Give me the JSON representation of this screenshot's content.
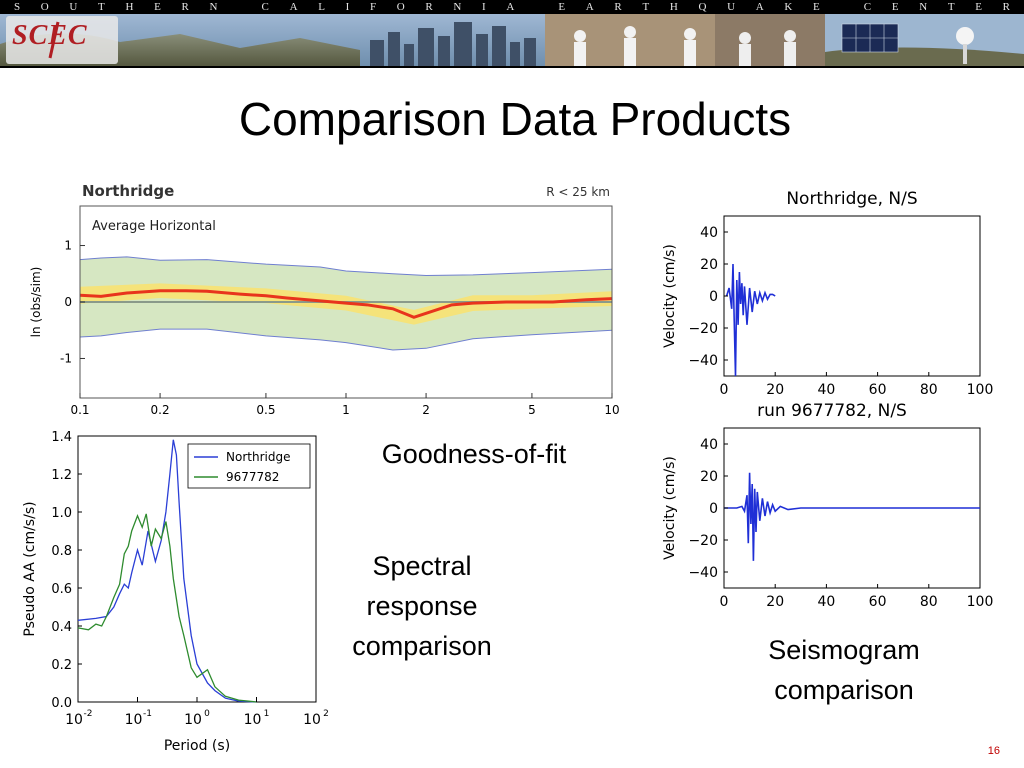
{
  "header": {
    "organization": "SOUTHERN CALIFORNIA EARTHQUAKE CENTER",
    "logo": "SCEC"
  },
  "slide": {
    "title": "Comparison Data Products",
    "captions": {
      "goodness": "Goodness-of-fit",
      "spectral": [
        "Spectral",
        "response",
        "comparison"
      ],
      "seismogram": [
        "Seismogram",
        "comparison"
      ]
    },
    "page_number": "16"
  },
  "chart_data": [
    {
      "id": "gof",
      "type": "area",
      "title": "Northridge",
      "subtitle": "R < 25 km",
      "annotation": "Average Horizontal",
      "ylabel": "ln (obs/sim)",
      "xlabel": "",
      "xscale": "log",
      "xlim": [
        0.1,
        10
      ],
      "ylim": [
        -1.7,
        1.7
      ],
      "xticks": [
        0.1,
        0.2,
        0.5,
        1,
        2,
        5,
        10
      ],
      "xtick_labels": [
        "0.1",
        "0.2",
        "0.5",
        "1",
        "2",
        "5",
        "10"
      ],
      "yticks": [
        -1,
        0,
        1
      ],
      "ytick_labels": [
        "-1",
        "0",
        "1"
      ],
      "series": [
        {
          "role": "mean bias",
          "color": "#e8341c",
          "x": [
            0.1,
            0.12,
            0.15,
            0.2,
            0.25,
            0.3,
            0.4,
            0.5,
            0.6,
            0.8,
            1.0,
            1.2,
            1.5,
            1.8,
            2.0,
            2.5,
            3.0,
            4.0,
            5.0,
            6.0,
            8.0,
            10.0
          ],
          "y": [
            0.12,
            0.1,
            0.16,
            0.2,
            0.2,
            0.19,
            0.14,
            0.11,
            0.07,
            0.02,
            -0.02,
            -0.05,
            -0.12,
            -0.27,
            -0.2,
            -0.05,
            -0.02,
            0.0,
            0.0,
            0.0,
            0.04,
            0.06
          ]
        },
        {
          "role": "90% confidence band",
          "color": "#f5e37a",
          "x": [
            0.1,
            0.2,
            0.5,
            1.0,
            1.8,
            3.0,
            5.0,
            10.0
          ],
          "lower": [
            -0.03,
            0.07,
            -0.02,
            -0.15,
            -0.4,
            -0.16,
            -0.12,
            -0.07
          ],
          "upper": [
            0.27,
            0.33,
            0.24,
            0.11,
            -0.14,
            0.12,
            0.12,
            0.19
          ]
        },
        {
          "role": "standard deviation band",
          "color": "#d6e7c2",
          "x": [
            0.1,
            0.12,
            0.15,
            0.2,
            0.3,
            0.5,
            0.8,
            1.0,
            1.5,
            2.0,
            3.0,
            5.0,
            10.0
          ],
          "lower": [
            -0.62,
            -0.6,
            -0.54,
            -0.48,
            -0.48,
            -0.6,
            -0.67,
            -0.72,
            -0.85,
            -0.82,
            -0.65,
            -0.58,
            -0.5
          ],
          "upper": [
            0.75,
            0.78,
            0.8,
            0.74,
            0.75,
            0.67,
            0.62,
            0.55,
            0.5,
            0.47,
            0.48,
            0.52,
            0.58
          ]
        }
      ]
    },
    {
      "id": "spectral",
      "type": "line",
      "title": "",
      "xlabel": "Period (s)",
      "ylabel": "Pseudo AA (cm/s/s)",
      "xscale": "log",
      "xlim": [
        0.01,
        100
      ],
      "ylim": [
        0.0,
        1.4
      ],
      "xtick_labels": [
        "10",
        "10",
        "10",
        "10",
        "10"
      ],
      "xtick_exponents": [
        "-2",
        "-1",
        "0",
        "1",
        "2"
      ],
      "ytick_labels": [
        "0.0",
        "0.2",
        "0.4",
        "0.6",
        "0.8",
        "1.0",
        "1.2",
        "1.4"
      ],
      "legend_position": "top-right",
      "series": [
        {
          "name": "Northridge",
          "color": "#2b3fd6",
          "x": [
            0.01,
            0.02,
            0.03,
            0.04,
            0.05,
            0.06,
            0.07,
            0.08,
            0.1,
            0.12,
            0.15,
            0.2,
            0.25,
            0.3,
            0.35,
            0.4,
            0.45,
            0.5,
            0.6,
            0.8,
            1.0,
            1.5,
            2,
            3,
            5,
            10
          ],
          "y": [
            0.43,
            0.44,
            0.45,
            0.5,
            0.57,
            0.62,
            0.6,
            0.68,
            0.8,
            0.72,
            0.9,
            0.74,
            0.85,
            1.0,
            1.2,
            1.38,
            1.3,
            1.05,
            0.65,
            0.35,
            0.2,
            0.1,
            0.06,
            0.02,
            0.005,
            0.0
          ]
        },
        {
          "name": "9677782",
          "color": "#2e8b2e",
          "x": [
            0.01,
            0.015,
            0.02,
            0.025,
            0.03,
            0.04,
            0.05,
            0.06,
            0.07,
            0.08,
            0.1,
            0.12,
            0.14,
            0.17,
            0.2,
            0.25,
            0.3,
            0.35,
            0.4,
            0.5,
            0.6,
            0.8,
            1.0,
            1.5,
            2,
            3,
            5,
            10
          ],
          "y": [
            0.39,
            0.38,
            0.41,
            0.4,
            0.45,
            0.55,
            0.62,
            0.78,
            0.82,
            0.9,
            0.98,
            0.92,
            0.99,
            0.82,
            0.91,
            0.86,
            0.95,
            0.82,
            0.65,
            0.45,
            0.35,
            0.18,
            0.13,
            0.17,
            0.08,
            0.03,
            0.01,
            0.0
          ]
        }
      ]
    },
    {
      "id": "seis-data",
      "type": "line",
      "title": "Northridge, N/S",
      "xlabel": "",
      "ylabel": "Velocity (cm/s)",
      "xlim": [
        0,
        100
      ],
      "ylim": [
        -50,
        50
      ],
      "xtick_labels": [
        "0",
        "20",
        "40",
        "60",
        "80",
        "100"
      ],
      "ytick_labels": [
        "40",
        "20",
        "0",
        "−20",
        "−40"
      ],
      "series": [
        {
          "color": "#1f2fd6",
          "x": [
            1,
            2,
            3,
            3.5,
            4,
            4.5,
            5,
            5.5,
            6,
            6.5,
            7,
            7.5,
            8,
            9,
            10,
            11,
            12,
            13,
            14,
            15,
            16,
            17,
            18,
            19,
            20
          ],
          "y": [
            0,
            5,
            -8,
            20,
            -15,
            -50,
            10,
            -18,
            15,
            -5,
            8,
            -12,
            6,
            -18,
            5,
            -10,
            3,
            -5,
            2,
            -3,
            2,
            -2,
            1,
            1,
            0
          ]
        }
      ]
    },
    {
      "id": "seis-sim",
      "type": "line",
      "title": "run 9677782, N/S",
      "xlabel": "",
      "ylabel": "Velocity (cm/s)",
      "xlim": [
        0,
        100
      ],
      "ylim": [
        -50,
        50
      ],
      "xtick_labels": [
        "0",
        "20",
        "40",
        "60",
        "80",
        "100"
      ],
      "ytick_labels": [
        "40",
        "20",
        "0",
        "−20",
        "−40"
      ],
      "series": [
        {
          "color": "#1f2fd6",
          "x": [
            0,
            5,
            7,
            8,
            9,
            9.5,
            10,
            10.5,
            11,
            11.5,
            12,
            12.5,
            13,
            14,
            15,
            16,
            17,
            18,
            19,
            20,
            22,
            25,
            30,
            40,
            60,
            80,
            100
          ],
          "y": [
            0,
            0,
            1,
            -2,
            8,
            -22,
            22,
            -10,
            15,
            -33,
            12,
            -15,
            10,
            -8,
            6,
            -5,
            4,
            -3,
            2,
            -2,
            1,
            -1,
            0,
            0,
            0,
            0,
            0
          ]
        }
      ]
    }
  ]
}
